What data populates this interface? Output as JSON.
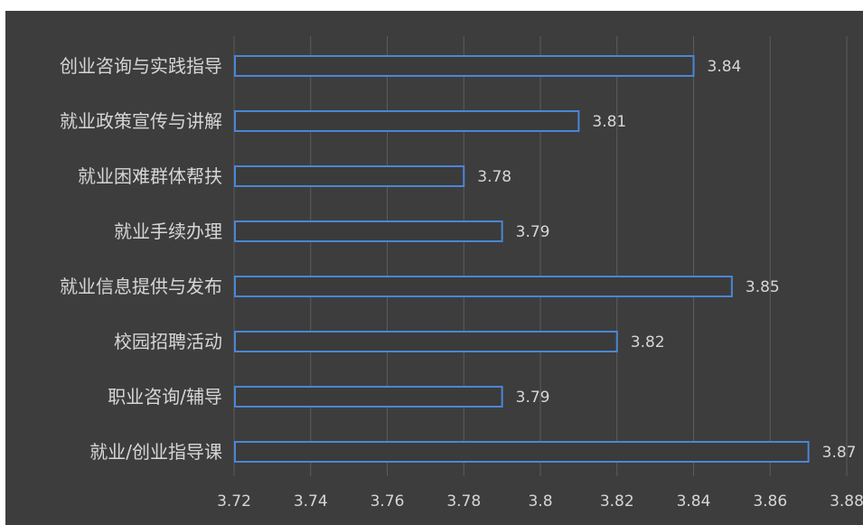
{
  "chart_data": {
    "type": "bar",
    "orientation": "horizontal",
    "categories": [
      "创业咨询与实践指导",
      "就业政策宣传与讲解",
      "就业困难群体帮扶",
      "就业手续办理",
      "就业信息提供与发布",
      "校园招聘活动",
      "职业咨询/辅导",
      "就业/创业指导课"
    ],
    "values": [
      3.84,
      3.81,
      3.78,
      3.79,
      3.85,
      3.82,
      3.79,
      3.87
    ],
    "value_labels": [
      "3.84",
      "3.81",
      "3.78",
      "3.79",
      "3.85",
      "3.82",
      "3.79",
      "3.87"
    ],
    "xlim": [
      3.72,
      3.88
    ],
    "x_ticks": [
      3.72,
      3.74,
      3.76,
      3.78,
      3.8,
      3.82,
      3.84,
      3.86,
      3.88
    ],
    "x_tick_labels": [
      "3.72",
      "3.74",
      "3.76",
      "3.78",
      "3.8",
      "3.82",
      "3.84",
      "3.86",
      "3.88"
    ],
    "grid": "vertical",
    "legend": "none",
    "title": "",
    "xlabel": "",
    "ylabel": ""
  },
  "colors": {
    "panel_background": "#3d3d3d",
    "gridline": "#5c5c5c",
    "bar_fill": "#3b3b3b",
    "bar_edge": "#4a86d6",
    "text": "#d6d6d6"
  }
}
